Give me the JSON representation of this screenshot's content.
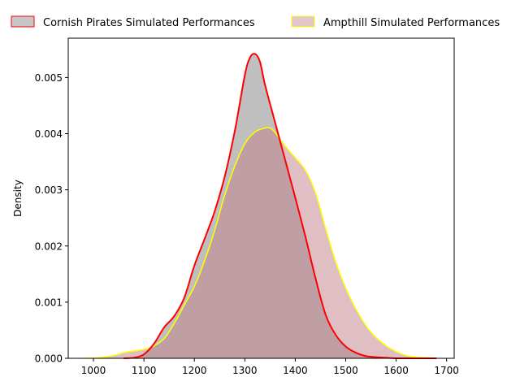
{
  "chart_data": {
    "type": "area",
    "title": "",
    "xlabel": "",
    "ylabel": "Density",
    "xlim": [
      950,
      1715
    ],
    "ylim": [
      0,
      0.0057
    ],
    "x_ticks": [
      1000,
      1100,
      1200,
      1300,
      1400,
      1500,
      1600,
      1700
    ],
    "x_tick_labels": [
      "1000",
      "1100",
      "1200",
      "1300",
      "1400",
      "1500",
      "1600",
      "1700"
    ],
    "y_ticks": [
      0,
      0.001,
      0.002,
      0.003,
      0.004,
      0.005
    ],
    "y_tick_labels": [
      "0.000",
      "0.001",
      "0.002",
      "0.003",
      "0.004",
      "0.005"
    ],
    "grid": false,
    "legend_position": "top, above plot, two columns",
    "series": [
      {
        "name": "Cornish Pirates Simulated Performances",
        "fill_color": "#808080",
        "line_color": "#ff0000",
        "x": [
          1060,
          1080,
          1100,
          1120,
          1140,
          1160,
          1180,
          1200,
          1220,
          1240,
          1260,
          1280,
          1300,
          1310,
          1320,
          1330,
          1340,
          1360,
          1380,
          1400,
          1420,
          1440,
          1460,
          1480,
          1500,
          1520,
          1540,
          1560,
          1580,
          1600,
          1620,
          1640,
          1660,
          1680
        ],
        "y": [
          0.0,
          1e-05,
          7e-05,
          0.00026,
          0.00055,
          0.00075,
          0.00108,
          0.00165,
          0.00212,
          0.00261,
          0.00323,
          0.00404,
          0.00504,
          0.00535,
          0.00542,
          0.00528,
          0.00487,
          0.0042,
          0.00353,
          0.00286,
          0.00217,
          0.00143,
          0.00078,
          0.00042,
          0.00021,
          0.0001,
          4e-05,
          2e-05,
          1e-05,
          0.0,
          0.0,
          0.0,
          0.0,
          0.0
        ]
      },
      {
        "name": "Ampthill Simulated Performances",
        "fill_color": "#c08088",
        "line_color": "#ffff00",
        "x": [
          980,
          1000,
          1020,
          1040,
          1060,
          1080,
          1100,
          1120,
          1140,
          1160,
          1180,
          1200,
          1220,
          1240,
          1260,
          1280,
          1300,
          1320,
          1340,
          1350,
          1360,
          1380,
          1400,
          1420,
          1440,
          1460,
          1480,
          1500,
          1520,
          1540,
          1560,
          1580,
          1600,
          1620,
          1640,
          1660,
          1680
        ],
        "y": [
          0.0,
          0.0,
          2e-05,
          5e-05,
          0.0001,
          0.00013,
          0.00016,
          0.00022,
          0.00035,
          0.00062,
          0.00095,
          0.00128,
          0.00173,
          0.00227,
          0.0029,
          0.00342,
          0.00382,
          0.00403,
          0.0041,
          0.0041,
          0.00402,
          0.00378,
          0.00357,
          0.00335,
          0.00295,
          0.00232,
          0.00172,
          0.00125,
          0.00088,
          0.00058,
          0.00037,
          0.00022,
          0.00012,
          5e-05,
          2e-05,
          1e-05,
          0.0
        ]
      }
    ]
  }
}
